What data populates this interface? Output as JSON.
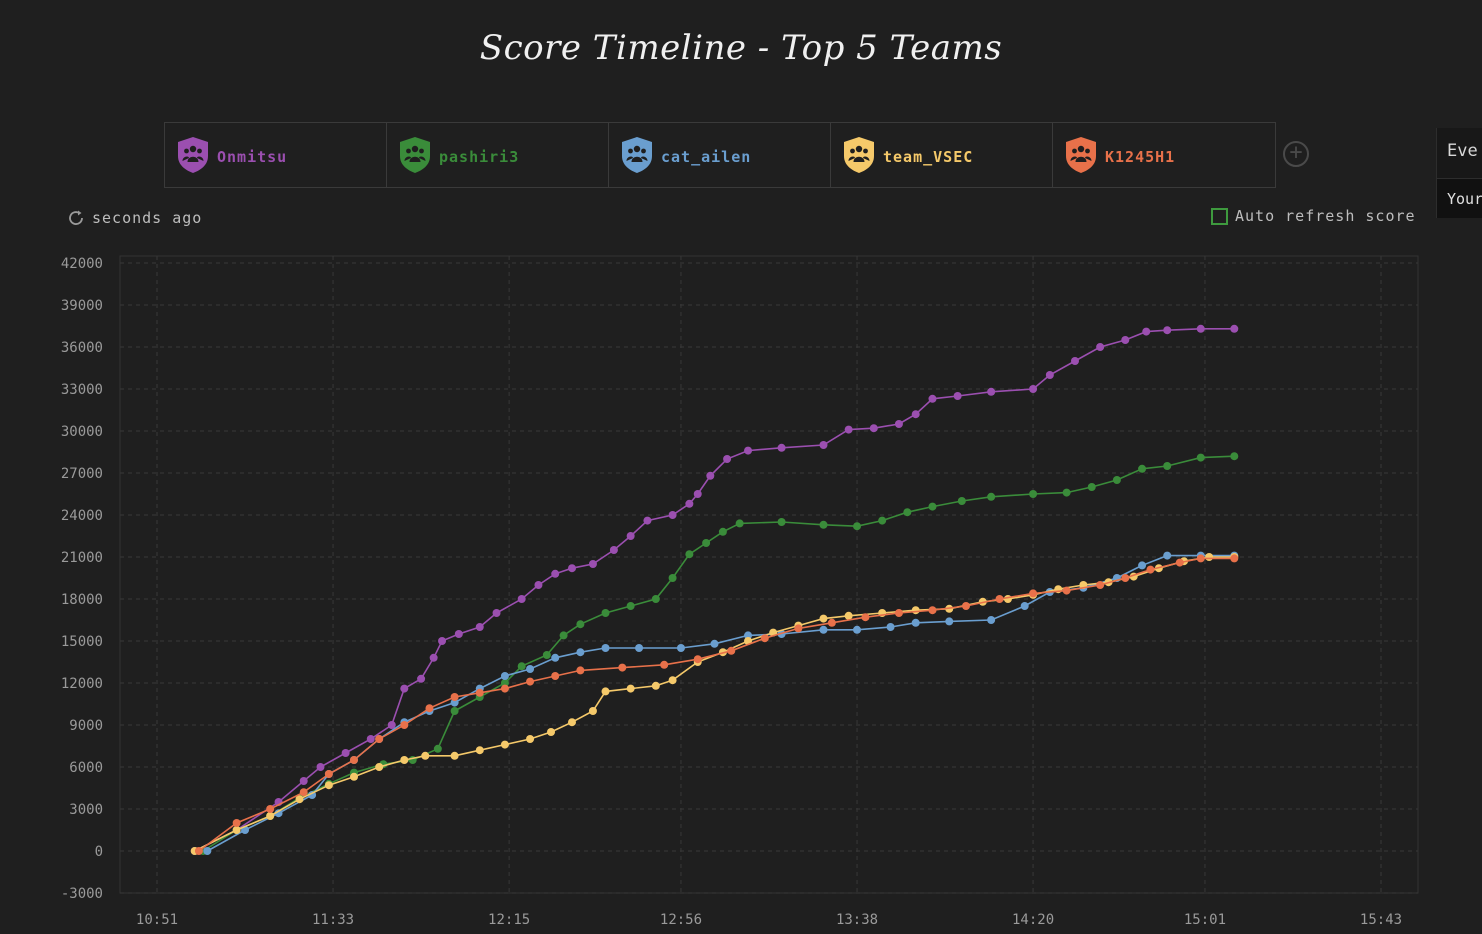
{
  "title": "Score Timeline - Top 5 Teams",
  "teams": [
    {
      "name": "Onmitsu",
      "color": "#9b4fb0"
    },
    {
      "name": "pashiri3",
      "color": "#3a8c3a"
    },
    {
      "name": "cat_ailen",
      "color": "#6a9ecf"
    },
    {
      "name": "team_VSEC",
      "color": "#f5c96a"
    },
    {
      "name": "K1245H1",
      "color": "#e8714a"
    }
  ],
  "icons": {
    "team": "team-shield-icon",
    "add": "plus-circle-icon",
    "refresh": "refresh-icon"
  },
  "status": {
    "refresh_text": "seconds ago",
    "auto_refresh_label": "Auto refresh score"
  },
  "side_panel": {
    "line1": "Eve",
    "line2": "Your"
  },
  "chart_data": {
    "type": "line",
    "x_ticks": [
      "10:51",
      "11:33",
      "12:15",
      "12:56",
      "13:38",
      "14:20",
      "15:01",
      "15:43"
    ],
    "y_ticks": [
      -3000,
      0,
      3000,
      6000,
      9000,
      12000,
      15000,
      18000,
      21000,
      24000,
      27000,
      30000,
      33000,
      36000,
      39000,
      42000
    ],
    "xlim": [
      "10:51",
      "15:43"
    ],
    "ylim": [
      -3000,
      42000
    ],
    "grid": true,
    "series": [
      {
        "name": "Onmitsu",
        "color": "#9b4fb0",
        "points": [
          [
            "11:00",
            0
          ],
          [
            "11:10",
            1500
          ],
          [
            "11:20",
            3500
          ],
          [
            "11:26",
            5000
          ],
          [
            "11:30",
            6000
          ],
          [
            "11:36",
            7000
          ],
          [
            "11:42",
            8000
          ],
          [
            "11:47",
            9000
          ],
          [
            "11:50",
            11600
          ],
          [
            "11:54",
            12300
          ],
          [
            "11:57",
            13800
          ],
          [
            "11:59",
            15000
          ],
          [
            "12:03",
            15500
          ],
          [
            "12:08",
            16000
          ],
          [
            "12:12",
            17000
          ],
          [
            "12:18",
            18000
          ],
          [
            "12:22",
            19000
          ],
          [
            "12:26",
            19800
          ],
          [
            "12:30",
            20200
          ],
          [
            "12:35",
            20500
          ],
          [
            "12:40",
            21500
          ],
          [
            "12:44",
            22500
          ],
          [
            "12:48",
            23600
          ],
          [
            "12:54",
            24000
          ],
          [
            "12:58",
            24800
          ],
          [
            "13:00",
            25500
          ],
          [
            "13:03",
            26800
          ],
          [
            "13:07",
            28000
          ],
          [
            "13:12",
            28600
          ],
          [
            "13:20",
            28800
          ],
          [
            "13:30",
            29000
          ],
          [
            "13:36",
            30100
          ],
          [
            "13:42",
            30200
          ],
          [
            "13:48",
            30500
          ],
          [
            "13:52",
            31200
          ],
          [
            "13:56",
            32300
          ],
          [
            "14:02",
            32500
          ],
          [
            "14:10",
            32800
          ],
          [
            "14:20",
            33000
          ],
          [
            "14:24",
            34000
          ],
          [
            "14:30",
            35000
          ],
          [
            "14:36",
            36000
          ],
          [
            "14:42",
            36500
          ],
          [
            "14:47",
            37100
          ],
          [
            "14:52",
            37200
          ],
          [
            "15:00",
            37300
          ],
          [
            "15:08",
            37300
          ]
        ]
      },
      {
        "name": "pashiri3",
        "color": "#3a8c3a",
        "points": [
          [
            "11:02",
            0
          ],
          [
            "11:10",
            1500
          ],
          [
            "11:18",
            2500
          ],
          [
            "11:25",
            3800
          ],
          [
            "11:32",
            4800
          ],
          [
            "11:38",
            5600
          ],
          [
            "11:45",
            6200
          ],
          [
            "11:52",
            6500
          ],
          [
            "11:58",
            7300
          ],
          [
            "12:02",
            10000
          ],
          [
            "12:08",
            11000
          ],
          [
            "12:14",
            12000
          ],
          [
            "12:18",
            13200
          ],
          [
            "12:24",
            14000
          ],
          [
            "12:28",
            15400
          ],
          [
            "12:32",
            16200
          ],
          [
            "12:38",
            17000
          ],
          [
            "12:44",
            17500
          ],
          [
            "12:50",
            18000
          ],
          [
            "12:54",
            19500
          ],
          [
            "12:58",
            21200
          ],
          [
            "13:02",
            22000
          ],
          [
            "13:06",
            22800
          ],
          [
            "13:10",
            23400
          ],
          [
            "13:20",
            23500
          ],
          [
            "13:30",
            23300
          ],
          [
            "13:38",
            23200
          ],
          [
            "13:44",
            23600
          ],
          [
            "13:50",
            24200
          ],
          [
            "13:56",
            24600
          ],
          [
            "14:03",
            25000
          ],
          [
            "14:10",
            25300
          ],
          [
            "14:20",
            25500
          ],
          [
            "14:28",
            25600
          ],
          [
            "14:34",
            26000
          ],
          [
            "14:40",
            26500
          ],
          [
            "14:46",
            27300
          ],
          [
            "14:52",
            27500
          ],
          [
            "15:00",
            28100
          ],
          [
            "15:08",
            28200
          ]
        ]
      },
      {
        "name": "cat_ailen",
        "color": "#6a9ecf",
        "points": [
          [
            "11:03",
            0
          ],
          [
            "11:12",
            1500
          ],
          [
            "11:20",
            2700
          ],
          [
            "11:28",
            4000
          ],
          [
            "11:32",
            5500
          ],
          [
            "11:38",
            6500
          ],
          [
            "11:44",
            8000
          ],
          [
            "11:50",
            9200
          ],
          [
            "11:56",
            10000
          ],
          [
            "12:02",
            10600
          ],
          [
            "12:08",
            11600
          ],
          [
            "12:14",
            12500
          ],
          [
            "12:20",
            13000
          ],
          [
            "12:26",
            13800
          ],
          [
            "12:32",
            14200
          ],
          [
            "12:38",
            14500
          ],
          [
            "12:46",
            14500
          ],
          [
            "12:56",
            14500
          ],
          [
            "13:04",
            14800
          ],
          [
            "13:12",
            15400
          ],
          [
            "13:20",
            15500
          ],
          [
            "13:30",
            15800
          ],
          [
            "13:38",
            15800
          ],
          [
            "13:46",
            16000
          ],
          [
            "13:52",
            16300
          ],
          [
            "14:00",
            16400
          ],
          [
            "14:10",
            16500
          ],
          [
            "14:18",
            17500
          ],
          [
            "14:24",
            18500
          ],
          [
            "14:32",
            18800
          ],
          [
            "14:40",
            19500
          ],
          [
            "14:46",
            20400
          ],
          [
            "14:52",
            21100
          ],
          [
            "15:00",
            21100
          ],
          [
            "15:08",
            21100
          ]
        ]
      },
      {
        "name": "team_VSEC",
        "color": "#f5c96a",
        "points": [
          [
            "11:00",
            0
          ],
          [
            "11:10",
            1500
          ],
          [
            "11:18",
            2500
          ],
          [
            "11:25",
            3700
          ],
          [
            "11:32",
            4700
          ],
          [
            "11:38",
            5300
          ],
          [
            "11:44",
            6000
          ],
          [
            "11:50",
            6500
          ],
          [
            "11:55",
            6800
          ],
          [
            "12:02",
            6800
          ],
          [
            "12:08",
            7200
          ],
          [
            "12:14",
            7600
          ],
          [
            "12:20",
            8000
          ],
          [
            "12:25",
            8500
          ],
          [
            "12:30",
            9200
          ],
          [
            "12:35",
            10000
          ],
          [
            "12:38",
            11400
          ],
          [
            "12:44",
            11600
          ],
          [
            "12:50",
            11800
          ],
          [
            "12:54",
            12200
          ],
          [
            "13:00",
            13500
          ],
          [
            "13:06",
            14200
          ],
          [
            "13:12",
            15000
          ],
          [
            "13:18",
            15600
          ],
          [
            "13:24",
            16100
          ],
          [
            "13:30",
            16600
          ],
          [
            "13:36",
            16800
          ],
          [
            "13:44",
            17000
          ],
          [
            "13:52",
            17200
          ],
          [
            "14:00",
            17300
          ],
          [
            "14:08",
            17800
          ],
          [
            "14:14",
            18000
          ],
          [
            "14:20",
            18300
          ],
          [
            "14:26",
            18700
          ],
          [
            "14:32",
            19000
          ],
          [
            "14:38",
            19200
          ],
          [
            "14:44",
            19600
          ],
          [
            "14:50",
            20200
          ],
          [
            "14:56",
            20700
          ],
          [
            "15:02",
            21000
          ],
          [
            "15:08",
            21000
          ]
        ]
      },
      {
        "name": "K1245H1",
        "color": "#e8714a",
        "points": [
          [
            "11:01",
            0
          ],
          [
            "11:10",
            2000
          ],
          [
            "11:18",
            3000
          ],
          [
            "11:26",
            4200
          ],
          [
            "11:32",
            5500
          ],
          [
            "11:38",
            6500
          ],
          [
            "11:44",
            8000
          ],
          [
            "11:50",
            9000
          ],
          [
            "11:56",
            10200
          ],
          [
            "12:02",
            11000
          ],
          [
            "12:08",
            11300
          ],
          [
            "12:14",
            11600
          ],
          [
            "12:20",
            12100
          ],
          [
            "12:26",
            12500
          ],
          [
            "12:32",
            12900
          ],
          [
            "12:42",
            13100
          ],
          [
            "12:52",
            13300
          ],
          [
            "13:00",
            13700
          ],
          [
            "13:08",
            14300
          ],
          [
            "13:16",
            15200
          ],
          [
            "13:24",
            15900
          ],
          [
            "13:32",
            16300
          ],
          [
            "13:40",
            16700
          ],
          [
            "13:48",
            17000
          ],
          [
            "13:56",
            17200
          ],
          [
            "14:04",
            17500
          ],
          [
            "14:12",
            18000
          ],
          [
            "14:20",
            18400
          ],
          [
            "14:28",
            18600
          ],
          [
            "14:36",
            19000
          ],
          [
            "14:42",
            19500
          ],
          [
            "14:48",
            20100
          ],
          [
            "14:55",
            20600
          ],
          [
            "15:00",
            20900
          ],
          [
            "15:08",
            20900
          ]
        ]
      }
    ]
  }
}
